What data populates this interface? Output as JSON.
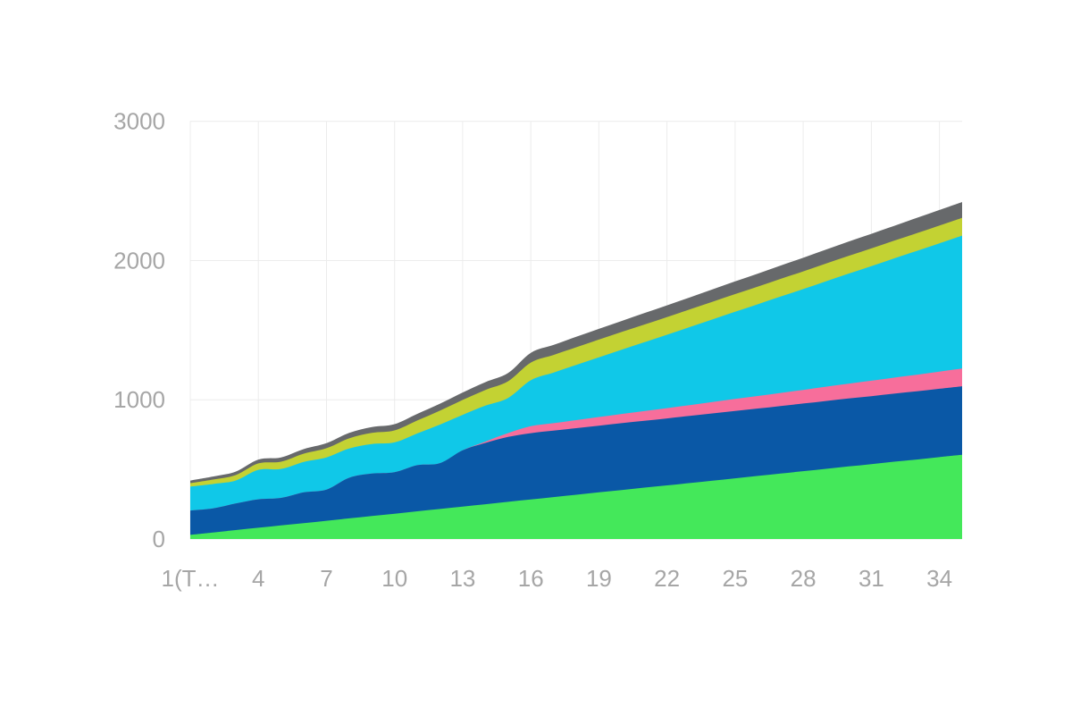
{
  "page": {
    "background_color": "#ffffff",
    "title": ""
  },
  "chart_data": {
    "type": "area",
    "stacked": true,
    "title": "",
    "xlabel": "",
    "ylabel": "",
    "legend": "none",
    "grid": true,
    "grid_color": "#ececec",
    "tick_color": "#a6a6a6",
    "xlim": [
      1,
      35
    ],
    "ylim": [
      0,
      3000
    ],
    "y_ticks": [
      0,
      1000,
      2000,
      3000
    ],
    "y_tick_labels": [
      "0",
      "1000",
      "2000",
      "3000"
    ],
    "x_tick_values": [
      1,
      4,
      7,
      10,
      13,
      16,
      19,
      22,
      25,
      28,
      31,
      34
    ],
    "x_tick_labels": [
      "1(T…",
      "4",
      "7",
      "10",
      "13",
      "16",
      "19",
      "22",
      "25",
      "28",
      "31",
      "34"
    ],
    "x": [
      1,
      2,
      3,
      4,
      5,
      6,
      7,
      8,
      9,
      10,
      11,
      12,
      13,
      14,
      15,
      16,
      17,
      18,
      19,
      20,
      21,
      22,
      23,
      24,
      25,
      26,
      27,
      28,
      29,
      30,
      31,
      32,
      33,
      34,
      35
    ],
    "series": [
      {
        "name": "green",
        "color": "#44e85a",
        "values": [
          30,
          47,
          64,
          81,
          98,
          114,
          131,
          148,
          165,
          182,
          199,
          216,
          233,
          250,
          267,
          284,
          301,
          318,
          335,
          352,
          369,
          385,
          402,
          419,
          436,
          453,
          470,
          487,
          504,
          521,
          538,
          555,
          571,
          588,
          605
        ]
      },
      {
        "name": "blue",
        "color": "#0a58a6",
        "values": [
          175,
          173,
          191,
          204,
          197,
          221,
          224,
          292,
          305,
          298,
          331,
          329,
          404,
          440,
          466,
          476,
          477,
          478,
          479,
          480,
          480,
          481,
          482,
          483,
          484,
          484,
          485,
          486,
          487,
          488,
          488,
          489,
          490,
          491,
          492
        ]
      },
      {
        "name": "pink",
        "color": "#f76e9b",
        "values": [
          0,
          0,
          0,
          0,
          0,
          0,
          0,
          0,
          0,
          0,
          0,
          0,
          0,
          10,
          28,
          50,
          54,
          58,
          62,
          66,
          70,
          74,
          78,
          82,
          86,
          90,
          94,
          98,
          103,
          107,
          111,
          115,
          119,
          123,
          127
        ]
      },
      {
        "name": "cyan",
        "color": "#10c8e8",
        "values": [
          171,
          175,
          165,
          212,
          208,
          219,
          231,
          210,
          212,
          214,
          228,
          277,
          255,
          258,
          252,
          330,
          363,
          396,
          429,
          462,
          494,
          527,
          560,
          593,
          626,
          659,
          692,
          724,
          757,
          790,
          823,
          856,
          889,
          922,
          955
        ]
      },
      {
        "name": "olive",
        "color": "#c3d233",
        "values": [
          25,
          32,
          39,
          46,
          52,
          59,
          66,
          73,
          80,
          86,
          93,
          100,
          107,
          113,
          120,
          127,
          127,
          127,
          127,
          127,
          127,
          127,
          127,
          127,
          127,
          127,
          127,
          127,
          127,
          127,
          127,
          127,
          127,
          127,
          127
        ]
      },
      {
        "name": "gray",
        "color": "#67696b",
        "values": [
          19,
          22,
          25,
          28,
          31,
          33,
          36,
          39,
          42,
          45,
          48,
          50,
          53,
          56,
          59,
          70,
          72,
          75,
          77,
          79,
          82,
          84,
          86,
          89,
          91,
          93,
          96,
          98,
          100,
          103,
          105,
          107,
          110,
          112,
          114
        ]
      }
    ]
  }
}
